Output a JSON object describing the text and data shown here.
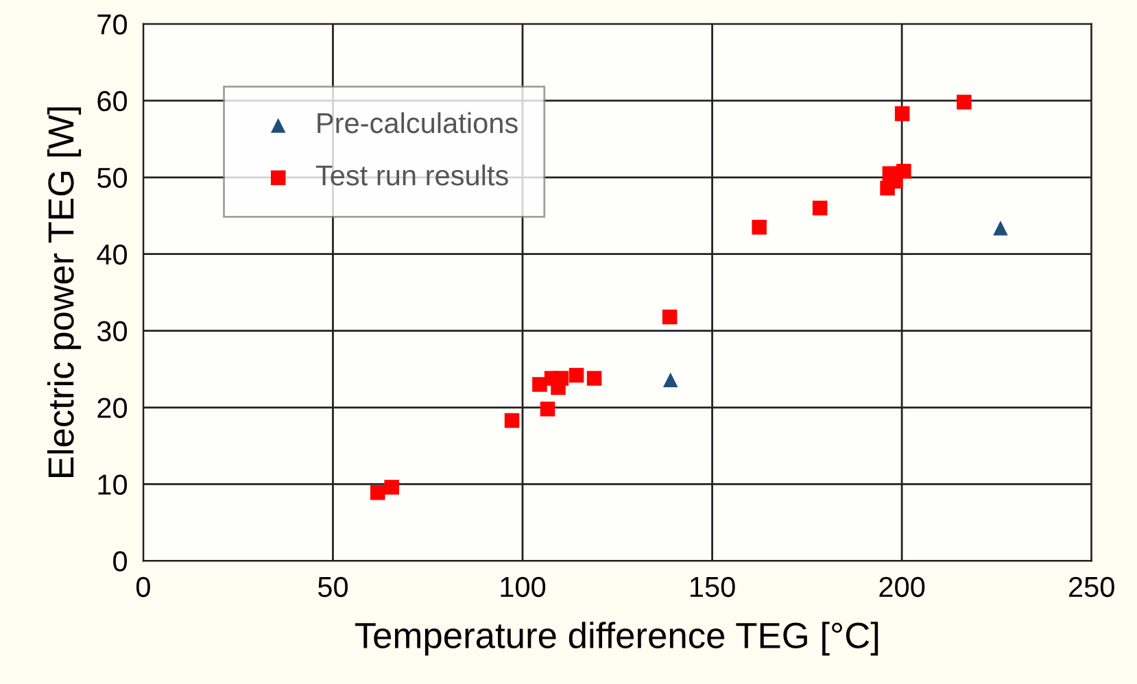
{
  "chart_data": {
    "type": "scatter",
    "xlabel": "Temperature difference TEG [°C]",
    "ylabel": "Electric power TEG [W]",
    "xlim": [
      0,
      250
    ],
    "xticks": [
      0,
      50,
      100,
      150,
      200,
      250
    ],
    "ylim": [
      0,
      70
    ],
    "yticks": [
      0,
      10,
      20,
      30,
      40,
      50,
      60,
      70
    ],
    "grid": true,
    "legend": "top left",
    "series": [
      {
        "name": "Pre-calculations",
        "color": "#1f4e79",
        "marker": "triangle",
        "x": [
          139,
          226
        ],
        "values": [
          23.6,
          43.4
        ]
      },
      {
        "name": "Test run results",
        "color": "#ff0000",
        "marker": "square",
        "x": [
          61.8,
          65.5,
          97.2,
          104.5,
          106.6,
          107.7,
          109.4,
          110.2,
          114.2,
          118.9,
          138.8,
          162.4,
          178.4,
          196.2,
          196.8,
          198.3,
          200.1,
          200.5,
          216.4
        ],
        "values": [
          8.9,
          9.6,
          18.3,
          23.0,
          19.8,
          23.8,
          22.6,
          23.8,
          24.2,
          23.8,
          31.8,
          43.5,
          46.0,
          48.6,
          50.5,
          49.5,
          58.3,
          50.8,
          59.8
        ]
      }
    ]
  }
}
